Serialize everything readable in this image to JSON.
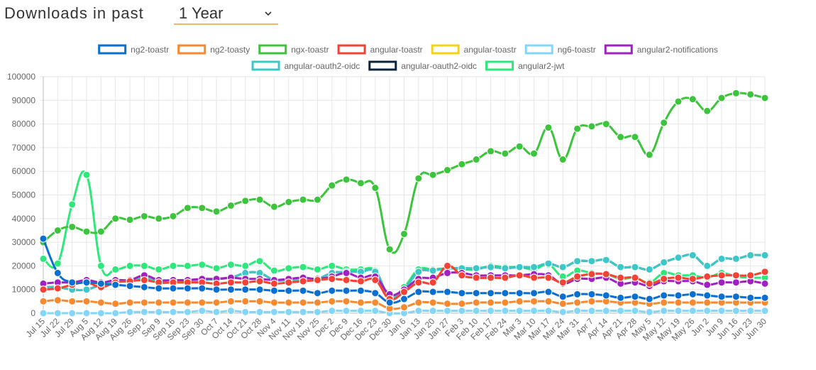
{
  "header": {
    "label": "Downloads in past",
    "period": "1 Year"
  },
  "chart_data": {
    "type": "line",
    "categories": [
      "Jul 15",
      "Jul 22",
      "Jul 29",
      "Aug 5",
      "Aug 12",
      "Aug 19",
      "Aug 26",
      "Sep 2",
      "Sep 9",
      "Sep 16",
      "Sep 23",
      "Sep 30",
      "Oct 7",
      "Oct 14",
      "Oct 21",
      "Oct 28",
      "Nov 4",
      "Nov 11",
      "Nov 18",
      "Nov 25",
      "Dec 2",
      "Dec 9",
      "Dec 16",
      "Dec 23",
      "Dec 30",
      "Jan 6",
      "Jan 13",
      "Jan 20",
      "Jan 27",
      "Feb 3",
      "Feb 10",
      "Feb 17",
      "Feb 24",
      "Mar 3",
      "Mar 10",
      "Mar 17",
      "Mar 24",
      "Mar 31",
      "Apr 7",
      "Apr 14",
      "Apr 21",
      "Apr 28",
      "May 5",
      "May 12",
      "May 19",
      "May 26",
      "Jun 2",
      "Jun 9",
      "Jun 16",
      "Jun 23",
      "Jun 30"
    ],
    "ylim": [
      0,
      100000
    ],
    "yticks": [
      0,
      10000,
      20000,
      30000,
      40000,
      50000,
      60000,
      70000,
      80000,
      90000,
      100000
    ],
    "grid": true,
    "series": [
      {
        "name": "ng2-toastr",
        "color": "#0a6fd0",
        "values": [
          31500,
          17000,
          13000,
          13000,
          12500,
          12000,
          11500,
          11000,
          10500,
          10500,
          10500,
          10500,
          10000,
          10000,
          10000,
          10000,
          9500,
          9500,
          9500,
          8500,
          9500,
          9500,
          9500,
          8500,
          4500,
          6000,
          9000,
          9000,
          9000,
          8500,
          8500,
          8500,
          8500,
          8500,
          8500,
          9000,
          7000,
          8000,
          8000,
          7500,
          6500,
          7000,
          6000,
          7500,
          7500,
          8000,
          7500,
          7000,
          7000,
          6500,
          6500
        ]
      },
      {
        "name": "ng2-toasty",
        "color": "#f7892f",
        "values": [
          5000,
          5500,
          5000,
          5000,
          4500,
          4000,
          4500,
          4500,
          4500,
          4500,
          4500,
          4500,
          4500,
          5000,
          5000,
          5000,
          4500,
          4500,
          4500,
          4500,
          5000,
          5000,
          4500,
          4500,
          2000,
          2500,
          4500,
          4500,
          4000,
          4000,
          4500,
          4500,
          4500,
          5000,
          5000,
          5000,
          4000,
          4500,
          5000,
          5000,
          4500,
          4500,
          4000,
          4500,
          4500,
          4500,
          4500,
          4500,
          4500,
          4500,
          4500
        ]
      },
      {
        "name": "ngx-toastr",
        "color": "#3cc43c",
        "values": [
          30000,
          35000,
          36500,
          34500,
          34500,
          40000,
          39500,
          41000,
          40000,
          41000,
          44500,
          44500,
          43000,
          45500,
          47500,
          48000,
          45000,
          47000,
          48000,
          48000,
          54000,
          56500,
          55000,
          53000,
          27000,
          33500,
          57000,
          58500,
          60500,
          63000,
          65000,
          68500,
          67500,
          70500,
          67500,
          78500,
          65000,
          78000,
          79000,
          80000,
          74500,
          74500,
          67000,
          80500,
          89500,
          90500,
          85500,
          91000,
          93000,
          92500,
          91000
        ]
      },
      {
        "name": "angular-toastr",
        "color": "#f44336",
        "values": [
          10000,
          10500,
          12000,
          13000,
          11000,
          13000,
          13500,
          14000,
          13000,
          13000,
          13000,
          13000,
          12500,
          13000,
          13000,
          13500,
          12500,
          13000,
          13500,
          14000,
          14500,
          14000,
          13500,
          14000,
          6000,
          9000,
          13000,
          13000,
          20000,
          16000,
          15000,
          15000,
          15000,
          16000,
          15000,
          15000,
          13000,
          15500,
          16500,
          16500,
          15000,
          15000,
          12500,
          14500,
          15000,
          14500,
          15500,
          16000,
          16000,
          16000,
          17500
        ]
      },
      {
        "name": "angular-toastr",
        "color": "#f5d312",
        "values": [
          10000,
          10500,
          12000,
          13000,
          11000,
          13000,
          13500,
          14000,
          13000,
          13000,
          13000,
          13000,
          12500,
          13000,
          13000,
          13500,
          12500,
          13000,
          13500,
          14000,
          14500,
          14000,
          13500,
          14000,
          6000,
          9000,
          13000,
          13000,
          20000,
          16000,
          15000,
          15000,
          15000,
          16000,
          15000,
          15000,
          13000,
          15500,
          16500,
          16500,
          15000,
          15000,
          12500,
          14500,
          15000,
          14500,
          15500,
          16000,
          16000,
          16000,
          17500
        ]
      },
      {
        "name": "ng6-toastr",
        "color": "#84d6f8",
        "values": [
          0,
          0,
          0,
          0,
          0,
          0,
          500,
          500,
          500,
          500,
          500,
          1000,
          500,
          1000,
          500,
          500,
          500,
          500,
          500,
          500,
          1000,
          1000,
          1000,
          1000,
          0,
          0,
          1000,
          1000,
          1000,
          1000,
          1000,
          1000,
          1000,
          1000,
          1000,
          1000,
          500,
          1000,
          1000,
          1000,
          1000,
          1000,
          500,
          1000,
          1000,
          1000,
          1000,
          1000,
          1000,
          1000,
          1000
        ]
      },
      {
        "name": "angular2-notifications",
        "color": "#a020c0",
        "values": [
          12500,
          13000,
          13000,
          14000,
          13000,
          14000,
          14000,
          16000,
          14000,
          14000,
          14000,
          14500,
          14500,
          15000,
          14500,
          14500,
          14000,
          14500,
          15000,
          14500,
          15500,
          17000,
          15000,
          15500,
          8000,
          10000,
          14500,
          15000,
          17000,
          17000,
          16000,
          16000,
          16000,
          16000,
          16500,
          16000,
          12500,
          14500,
          14500,
          15000,
          12500,
          13000,
          11500,
          13500,
          13500,
          13500,
          12000,
          13000,
          13000,
          13500,
          12500
        ]
      },
      {
        "name": "angular-oauth2-oidc",
        "color": "#3cc8c8",
        "values": [
          11000,
          11000,
          10000,
          10000,
          12000,
          13000,
          14000,
          15000,
          13000,
          13000,
          13500,
          14000,
          14500,
          15000,
          17000,
          17000,
          14000,
          14000,
          14000,
          14500,
          17000,
          17500,
          17500,
          17500,
          7000,
          10000,
          17500,
          18000,
          19000,
          19000,
          19000,
          19500,
          19000,
          19500,
          19500,
          21000,
          19500,
          22000,
          22000,
          22500,
          19500,
          19500,
          18500,
          21500,
          23500,
          24500,
          20000,
          23000,
          23000,
          24500,
          24500
        ]
      },
      {
        "name": "angular-oauth2-oidc",
        "color": "#0c2340",
        "values": [
          11000,
          11000,
          10000,
          10000,
          12000,
          13000,
          14000,
          15000,
          13000,
          13000,
          13500,
          14000,
          14500,
          15000,
          17000,
          17000,
          14000,
          14000,
          14000,
          14500,
          17000,
          17500,
          17500,
          17500,
          7000,
          10000,
          17500,
          18000,
          19000,
          19000,
          19000,
          19500,
          19000,
          19500,
          19500,
          21000,
          19500,
          22000,
          22000,
          22500,
          19500,
          19500,
          18500,
          21500,
          23500,
          24500,
          20000,
          23000,
          23000,
          24500,
          24500
        ]
      },
      {
        "name": "angular2-jwt",
        "color": "#2ee87c",
        "values": [
          23000,
          21000,
          46000,
          58500,
          20000,
          18500,
          20000,
          20000,
          18500,
          20000,
          20000,
          20500,
          19000,
          20500,
          20000,
          22000,
          18000,
          19000,
          19500,
          18500,
          20000,
          18500,
          18500,
          18000,
          7000,
          11000,
          18500,
          18500,
          19000,
          18500,
          18500,
          20000,
          19500,
          19500,
          18500,
          20500,
          15500,
          18000,
          17000,
          16500,
          14500,
          15000,
          13000,
          17000,
          16000,
          16000,
          15000,
          17000,
          15500,
          15000,
          15000
        ]
      }
    ]
  }
}
